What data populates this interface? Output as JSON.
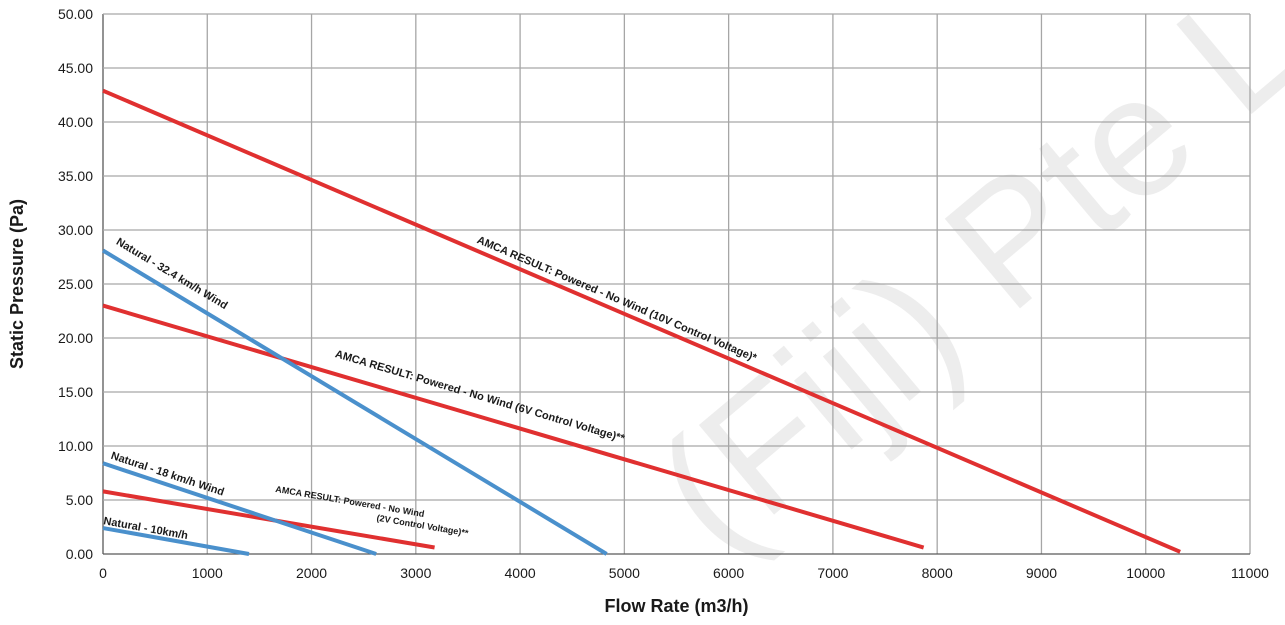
{
  "chart_data": {
    "type": "line",
    "title": "",
    "xlabel": "Flow Rate (m3/h)",
    "ylabel": "Static Pressure (Pa)",
    "xlim": [
      0,
      11000
    ],
    "ylim": [
      0,
      50
    ],
    "x_ticks": [
      "0",
      "1000",
      "2000",
      "3000",
      "4000",
      "5000",
      "6000",
      "7000",
      "8000",
      "9000",
      "10000",
      "11000"
    ],
    "y_ticks": [
      "0.00",
      "5.00",
      "10.00",
      "15.00",
      "20.00",
      "25.00",
      "30.00",
      "35.00",
      "40.00",
      "45.00",
      "50.00"
    ],
    "grid": true,
    "legend": "none (labels on lines)",
    "colors": {
      "powered": "#e03030",
      "natural": "#4a90cc",
      "grid": "#a6a6a6",
      "axis": "#595959"
    },
    "series": [
      {
        "name": "AMCA RESULT: Powered - No Wind (10V Control Voltage)*",
        "color": "#e03030",
        "points": [
          [
            0,
            42.9
          ],
          [
            10330,
            0.2
          ]
        ]
      },
      {
        "name": "AMCA RESULT: Powered - No Wind (6V Control Voltage)**",
        "color": "#e03030",
        "points": [
          [
            0,
            23.0
          ],
          [
            7870,
            0.6
          ]
        ]
      },
      {
        "name": "AMCA RESULT: Powered - No Wind (2V Control Voltage)**",
        "color": "#e03030",
        "points": [
          [
            0,
            5.8
          ],
          [
            3180,
            0.6
          ]
        ]
      },
      {
        "name": "Natural - 32.4 km/h Wind",
        "color": "#4a90cc",
        "points": [
          [
            0,
            28.1
          ],
          [
            4830,
            0.0
          ]
        ]
      },
      {
        "name": "Natural - 18 km/h Wind",
        "color": "#4a90cc",
        "points": [
          [
            0,
            8.4
          ],
          [
            2620,
            0.0
          ]
        ]
      },
      {
        "name": "Natural - 10km/h",
        "color": "#4a90cc",
        "points": [
          [
            0,
            2.4
          ],
          [
            1400,
            0.0
          ]
        ]
      }
    ],
    "annotations": [
      {
        "text": "AMCA RESULT: Powered - No Wind (10V Control Voltage)*",
        "series": 0
      },
      {
        "text": "AMCA RESULT: Powered - No Wind (6V Control Voltage)**",
        "series": 1
      },
      {
        "text": "AMCA RESULT: Powered - No Wind",
        "series": 2
      },
      {
        "text": "(2V Control Voltage)**",
        "series": 2
      },
      {
        "text": "Natural - 32.4 km/h Wind",
        "series": 3
      },
      {
        "text": "Natural - 18 km/h Wind",
        "series": 4
      },
      {
        "text": "Natural - 10km/h",
        "series": 5
      }
    ],
    "watermark": "(Fiji) Pte L"
  }
}
